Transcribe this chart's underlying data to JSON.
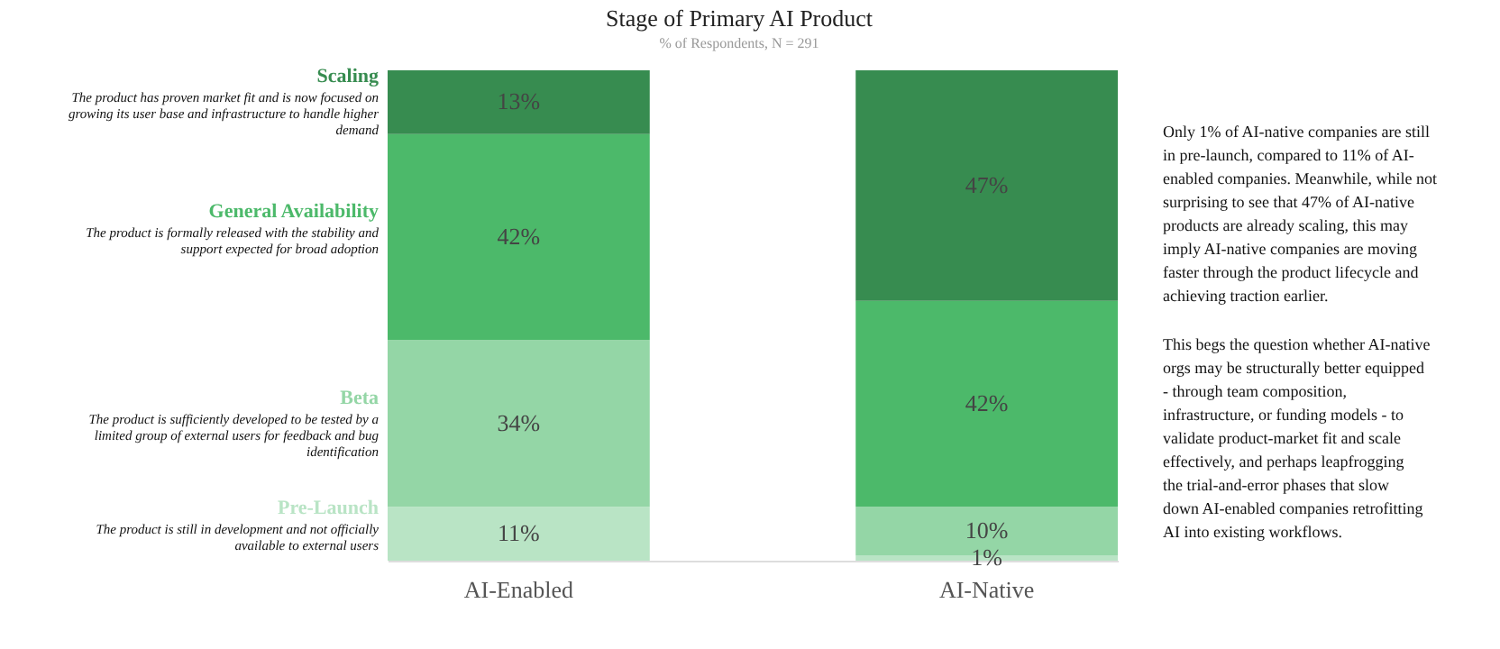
{
  "chart_data": {
    "type": "bar",
    "stacked": true,
    "title": "Stage of Primary AI Product",
    "subtitle": "% of Respondents, N = 291",
    "categories": [
      "AI-Enabled",
      "AI-Native"
    ],
    "series": [
      {
        "name": "Pre-Launch",
        "color": "#b9e4c5",
        "values": [
          11,
          1
        ],
        "value_labels": [
          "11%",
          "1%"
        ]
      },
      {
        "name": "Beta",
        "color": "#94d6a6",
        "values": [
          34,
          10
        ],
        "value_labels": [
          "34%",
          "10%"
        ]
      },
      {
        "name": "General Availability",
        "color": "#4cb96a",
        "values": [
          42,
          42
        ],
        "value_labels": [
          "42%",
          "42%"
        ]
      },
      {
        "name": "Scaling",
        "color": "#378c50",
        "values": [
          13,
          47
        ],
        "value_labels": [
          "13%",
          "47%"
        ]
      }
    ],
    "annotations": [
      "The product is still in development and not officially available to external users",
      "The product is sufficiently developed to be tested by a limited group of external users for feedback and bug identification",
      "The product is formally released with the stability and support expected for broad adoption",
      "The product has proven market fit and is now focused on growing its user base and infrastructure to handle higher demand",
      "Only 1% of AI-native companies are still in pre-launch, compared to 11% of AI-enabled companies. Meanwhile, while not surprising to see that 47% of AI-native products are already scaling, this may imply AI-native companies are moving faster through the product lifecycle and achieving traction earlier.",
      "This begs the question whether AI-native orgs may be structurally better equipped - through team composition, infrastructure, or funding models - to validate product-market fit and scale effectively, and perhaps leapfrogging the trial-and-error phases that slow down AI-enabled companies retrofitting AI into existing workflows."
    ],
    "grid": false
  }
}
